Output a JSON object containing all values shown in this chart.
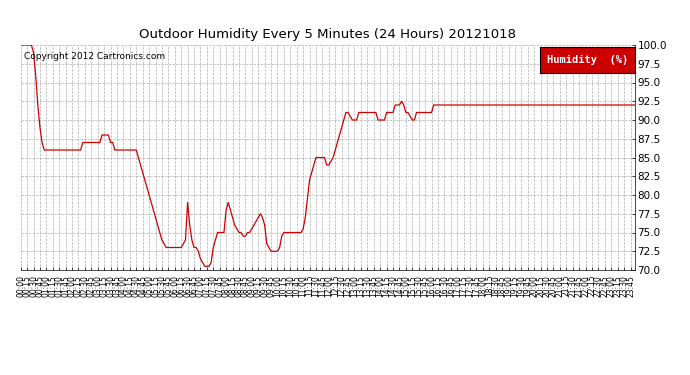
{
  "title": "Outdoor Humidity Every 5 Minutes (24 Hours) 20121018",
  "copyright": "Copyright 2012 Cartronics.com",
  "legend_label": "Humidity  (%)",
  "legend_bg": "#cc0000",
  "legend_text_color": "#ffffff",
  "line_color": "#cc0000",
  "bg_color": "#ffffff",
  "plot_bg": "#ffffff",
  "grid_color": "#999999",
  "ylim": [
    70.0,
    100.0
  ],
  "yticks": [
    70.0,
    72.5,
    75.0,
    77.5,
    80.0,
    82.5,
    85.0,
    87.5,
    90.0,
    92.5,
    95.0,
    97.5,
    100.0
  ],
  "humidity_data": [
    100,
    100,
    100,
    100,
    100,
    100,
    99,
    96,
    92,
    89,
    87,
    86,
    86,
    86,
    86,
    86,
    86,
    86,
    86,
    86,
    86,
    86,
    86,
    86,
    86,
    86,
    86,
    86,
    86,
    87,
    87,
    87,
    87,
    87,
    87,
    87,
    87,
    87,
    88,
    88,
    88,
    88,
    87,
    87,
    86,
    86,
    86,
    86,
    86,
    86,
    86,
    86,
    86,
    86,
    86,
    85,
    84,
    83,
    82,
    81,
    80,
    79,
    78,
    77,
    76,
    75,
    74,
    73.5,
    73,
    73,
    73,
    73,
    73,
    73,
    73,
    73,
    73.5,
    74,
    79,
    76,
    74,
    73,
    73,
    72.5,
    71.5,
    71,
    70.5,
    70.5,
    70.5,
    71,
    73,
    74,
    75,
    75,
    75,
    75,
    78,
    79,
    78,
    77,
    76,
    75.5,
    75,
    75,
    74.5,
    74.5,
    75,
    75,
    75.5,
    76,
    76.5,
    77,
    77.5,
    77,
    76,
    73.5,
    73,
    72.5,
    72.5,
    72.5,
    72.5,
    73,
    74.5,
    75,
    75,
    75,
    75,
    75,
    75,
    75,
    75,
    75,
    75.5,
    77,
    79.5,
    82,
    83,
    84,
    85,
    85,
    85,
    85,
    85,
    84,
    84,
    84.5,
    85,
    86,
    87,
    88,
    89,
    90,
    91,
    91,
    90.5,
    90,
    90,
    90,
    91,
    91,
    91,
    91,
    91,
    91,
    91,
    91,
    91,
    90,
    90,
    90,
    90,
    91,
    91,
    91,
    91,
    92,
    92,
    92,
    92.5,
    92,
    91,
    91,
    90.5,
    90,
    90,
    91,
    91,
    91,
    91,
    91,
    91,
    91,
    91,
    92,
    92,
    92,
    92,
    92,
    92,
    92,
    92,
    92,
    92,
    92,
    92,
    92,
    92,
    92,
    92,
    92,
    92,
    92,
    92,
    92,
    92,
    92,
    92,
    92,
    92,
    92,
    92,
    92,
    92,
    92,
    92,
    92,
    92,
    92,
    92,
    92,
    92,
    92,
    92,
    92,
    92,
    92,
    92,
    92,
    92,
    92,
    92,
    92,
    92,
    92,
    92,
    92,
    92,
    92,
    92,
    92,
    92,
    92,
    92,
    92,
    92,
    92,
    92,
    92,
    92,
    92,
    92,
    92,
    92,
    92,
    92,
    92,
    92,
    92,
    92,
    92,
    92,
    92,
    92,
    92,
    92,
    92,
    92,
    92,
    92,
    92,
    92,
    92,
    92,
    92,
    92,
    92,
    92,
    92
  ]
}
